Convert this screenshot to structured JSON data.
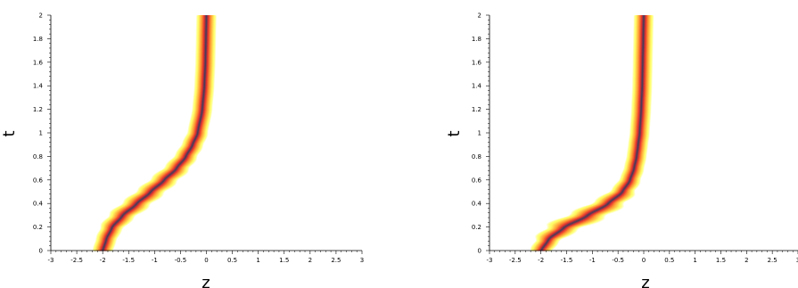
{
  "chart_data": [
    {
      "type": "heatmap",
      "title": "",
      "xlabel": "z",
      "ylabel": "t",
      "xlim": [
        -3,
        3
      ],
      "ylim": [
        0,
        2
      ],
      "x_ticks": [
        -3,
        -2.5,
        -2,
        -1.5,
        -1,
        -0.5,
        0,
        0.5,
        1,
        1.5,
        2,
        2.5,
        3
      ],
      "y_ticks": [
        0,
        0.2,
        0.4,
        0.6,
        0.8,
        1,
        1.2,
        1.4,
        1.6,
        1.8,
        2
      ],
      "x_tick_labels": [
        "-3",
        "-2.5",
        "-2",
        "-1.5",
        "-1",
        "-0.5",
        "0",
        "0.5",
        "1",
        "1.5",
        "2",
        "2.5",
        "3"
      ],
      "y_tick_labels": [
        "0",
        "0.2",
        "0.4",
        "0.6",
        "0.8",
        "1",
        "1.2",
        "1.4",
        "1.6",
        "1.8",
        "2"
      ],
      "colormap": [
        "#ffff66",
        "#ff9933",
        "#e8322e",
        "#7a2a50",
        "#3b3b5c"
      ],
      "ridge": {
        "t": [
          0,
          0.1,
          0.2,
          0.3,
          0.4,
          0.5,
          0.6,
          0.7,
          0.8,
          0.9,
          1.0,
          1.2,
          1.4,
          1.6,
          1.8,
          2.0
        ],
        "z": [
          -2.0,
          -1.93,
          -1.82,
          -1.62,
          -1.35,
          -1.08,
          -0.82,
          -0.58,
          -0.4,
          -0.27,
          -0.17,
          -0.08,
          -0.04,
          -0.02,
          -0.01,
          0.0
        ]
      },
      "band_halfwidth": [
        0.2,
        0.2,
        0.2,
        0.2,
        0.2,
        0.2,
        0.2,
        0.2,
        0.2,
        0.2,
        0.2,
        0.2,
        0.2,
        0.2,
        0.2,
        0.2
      ]
    },
    {
      "type": "heatmap",
      "title": "",
      "xlabel": "z",
      "ylabel": "t",
      "xlim": [
        -3,
        3
      ],
      "ylim": [
        0,
        2
      ],
      "x_ticks": [
        -3,
        -2.5,
        -2,
        -1.5,
        -1,
        -0.5,
        0,
        0.5,
        1,
        1.5,
        2,
        2.5,
        3
      ],
      "y_ticks": [
        0,
        0.2,
        0.4,
        0.6,
        0.8,
        1,
        1.2,
        1.4,
        1.6,
        1.8,
        2
      ],
      "x_tick_labels": [
        "-3",
        "-2.5",
        "-2",
        "-1.5",
        "-1",
        "-0.5",
        "0",
        "0.5",
        "1",
        "1.5",
        "2",
        "2.5",
        "3"
      ],
      "y_tick_labels": [
        "0",
        "0.2",
        "0.4",
        "0.6",
        "0.8",
        "1",
        "1.2",
        "1.4",
        "1.6",
        "1.8",
        "2"
      ],
      "colormap": [
        "#ffff66",
        "#ff9933",
        "#e8322e",
        "#7a2a50",
        "#3b3b5c"
      ],
      "ridge": {
        "t": [
          0,
          0.1,
          0.2,
          0.3,
          0.4,
          0.5,
          0.6,
          0.7,
          0.8,
          0.9,
          1.0,
          1.2,
          1.4,
          1.6,
          1.8,
          2.0
        ],
        "z": [
          -2.0,
          -1.85,
          -1.55,
          -1.1,
          -0.7,
          -0.42,
          -0.27,
          -0.19,
          -0.14,
          -0.11,
          -0.08,
          -0.05,
          -0.03,
          -0.02,
          -0.01,
          0.0
        ]
      },
      "band_halfwidth": [
        0.2,
        0.2,
        0.2,
        0.2,
        0.2,
        0.2,
        0.2,
        0.2,
        0.2,
        0.2,
        0.2,
        0.2,
        0.2,
        0.2,
        0.2,
        0.2
      ]
    }
  ]
}
